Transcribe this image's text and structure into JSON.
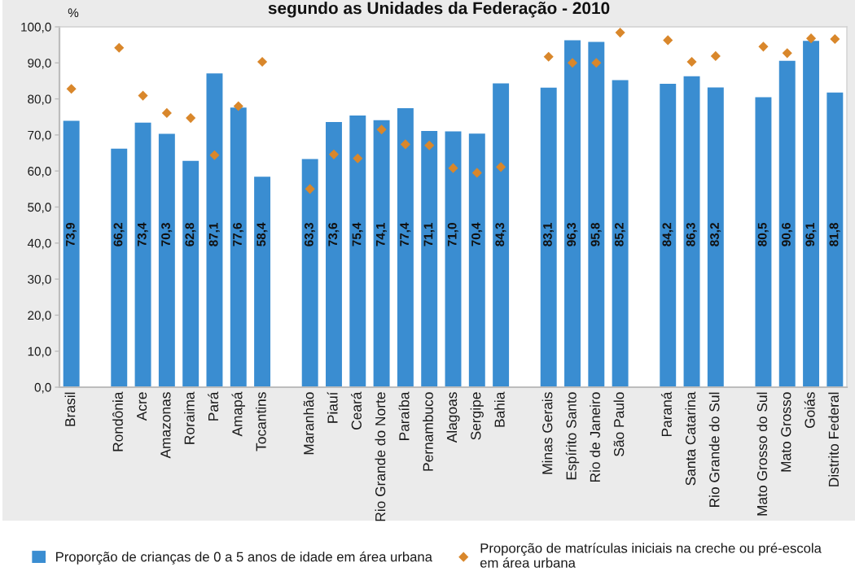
{
  "chart_data": {
    "type": "bar",
    "title": "segundo as Unidades da Federação - 2010",
    "ylabel": "%",
    "categories": [
      "Brasil",
      null,
      "Rondônia",
      "Acre",
      "Amazonas",
      "Roraima",
      "Pará",
      "Amapá",
      "Tocantins",
      null,
      "Maranhão",
      "Piauí",
      "Ceará",
      "Rio Grande do Norte",
      "Paraíba",
      "Pernambuco",
      "Alagoas",
      "Sergipe",
      "Bahia",
      null,
      "Minas Gerais",
      "Espírito Santo",
      "Rio de Janeiro",
      "São Paulo",
      null,
      "Paraná",
      "Santa Catarina",
      "Rio Grande do Sul",
      null,
      "Mato Grosso do Sul",
      "Mato Grosso",
      "Goiás",
      "Distrito Federal"
    ],
    "series": [
      {
        "name": "Proporção de crianças de 0 a 5 anos de idade em área urbana",
        "color": "#3a8dd1",
        "values": [
          73.9,
          null,
          66.2,
          73.4,
          70.3,
          62.8,
          87.1,
          77.6,
          58.4,
          null,
          63.3,
          73.6,
          75.4,
          74.1,
          77.4,
          71.1,
          71.0,
          70.4,
          84.3,
          null,
          83.1,
          96.3,
          95.8,
          85.2,
          null,
          84.2,
          86.3,
          83.2,
          null,
          80.5,
          90.6,
          96.1,
          81.8
        ],
        "value_labels": [
          "73,9",
          null,
          "66,2",
          "73,4",
          "70,3",
          "62,8",
          "87,1",
          "77,6",
          "58,4",
          null,
          "63,3",
          "73,6",
          "75,4",
          "74,1",
          "77,4",
          "71,1",
          "71,0",
          "70,4",
          "84,3",
          null,
          "83,1",
          "96,3",
          "95,8",
          "85,2",
          null,
          "84,2",
          "86,3",
          "83,2",
          null,
          "80,5",
          "90,6",
          "96,1",
          "81,8"
        ]
      },
      {
        "name": "Proporção de matrículas iniciais na creche ou pré-escola\nem área urbana",
        "type": "scatter",
        "color": "#d9872b",
        "marker": "diamond",
        "values": [
          82.8,
          null,
          94.2,
          80.9,
          76.1,
          74.7,
          64.4,
          78.0,
          90.3,
          null,
          55.0,
          64.6,
          63.5,
          71.5,
          67.4,
          67.1,
          60.8,
          59.5,
          61.1,
          null,
          91.7,
          90.0,
          90.0,
          98.4,
          null,
          96.3,
          90.3,
          91.9,
          null,
          94.5,
          92.7,
          96.8,
          96.6
        ]
      }
    ],
    "ylim": [
      0,
      100
    ],
    "yticks": [
      {
        "value": 0,
        "label": "0,0"
      },
      {
        "value": 10,
        "label": "10,0"
      },
      {
        "value": 20,
        "label": "20,0"
      },
      {
        "value": 30,
        "label": "30,0"
      },
      {
        "value": 40,
        "label": "40,0"
      },
      {
        "value": 50,
        "label": "50,0"
      },
      {
        "value": 60,
        "label": "60,0"
      },
      {
        "value": 70,
        "label": "70,0"
      },
      {
        "value": 80,
        "label": "80,0"
      },
      {
        "value": 90,
        "label": "90,0"
      },
      {
        "value": 100,
        "label": "100,0"
      }
    ],
    "legend": "bottom"
  }
}
